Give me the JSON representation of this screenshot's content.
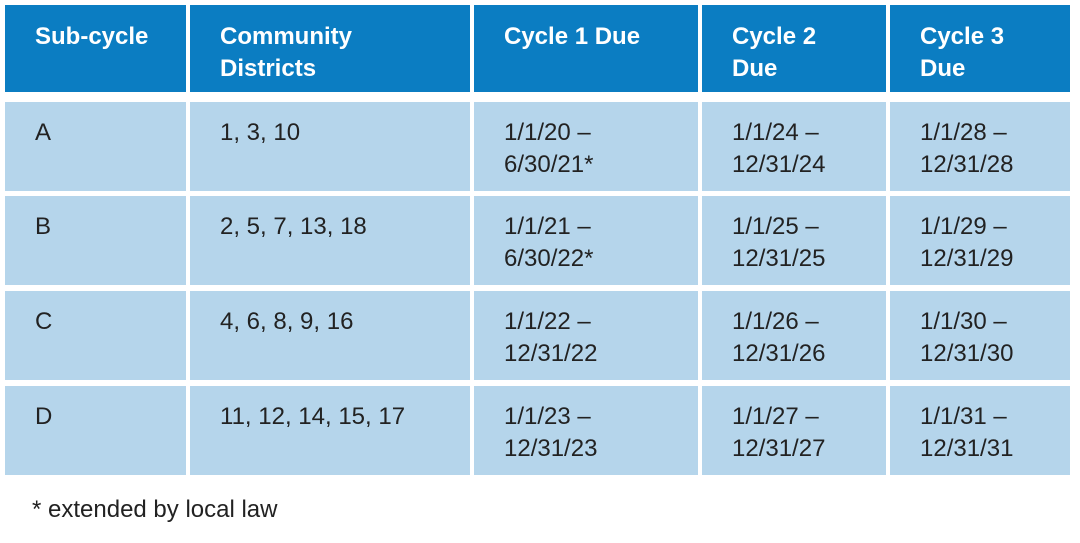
{
  "table": {
    "header": [
      "Sub-cycle",
      "Community\nDistricts",
      "Cycle 1 Due",
      "Cycle 2\nDue",
      "Cycle 3\nDue"
    ],
    "rows": [
      [
        "A",
        "1, 3, 10",
        "1/1/20 –\n6/30/21*",
        "1/1/24 –\n12/31/24",
        "1/1/28 –\n12/31/28"
      ],
      [
        "B",
        "2, 5, 7, 13, 18",
        "1/1/21 –\n6/30/22*",
        "1/1/25 –\n12/31/25",
        "1/1/29 –\n12/31/29"
      ],
      [
        "C",
        "4, 6, 8, 9, 16",
        "1/1/22 –\n12/31/22",
        "1/1/26 –\n12/31/26",
        "1/1/30 –\n12/31/30"
      ],
      [
        "D",
        "11, 12, 14, 15, 17",
        "1/1/23 –\n12/31/23",
        "1/1/27 –\n12/31/27",
        "1/1/31 –\n12/31/31"
      ]
    ],
    "footnote": "* extended by local law"
  }
}
